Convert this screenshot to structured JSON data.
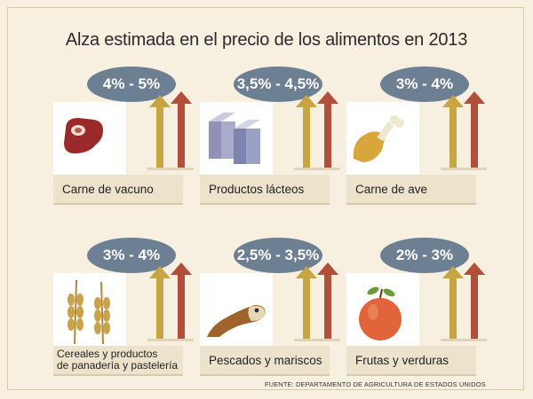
{
  "title": "Alza estimada en el precio de los alimentos en 2013",
  "colors": {
    "bubble": "#6d7f92",
    "arrow_short": "#c8a543",
    "arrow_tall": "#b24f3a"
  },
  "items": [
    {
      "label": "Carne de vacuno",
      "range": "4% - 5%",
      "icon": "beef-steak-icon"
    },
    {
      "label": "Productos lácteos",
      "range": "3,5% - 4,5%",
      "icon": "dairy-cartons-icon"
    },
    {
      "label": "Carne de ave",
      "range": "3% - 4%",
      "icon": "poultry-drumstick-icon"
    },
    {
      "label_line1": "Cereales y productos",
      "label_line2": "de panadería y pastelería",
      "range": "3% - 4%",
      "icon": "wheat-icon"
    },
    {
      "label": "Pescados y mariscos",
      "range": "2,5% - 3,5%",
      "icon": "fish-icon"
    },
    {
      "label": "Frutas y verduras",
      "range": "2% - 3%",
      "icon": "apple-icon"
    }
  ],
  "source": "FUENTE: DEPARTAMENTO DE AGRICULTURA DE ESTADOS UNIDOS"
}
